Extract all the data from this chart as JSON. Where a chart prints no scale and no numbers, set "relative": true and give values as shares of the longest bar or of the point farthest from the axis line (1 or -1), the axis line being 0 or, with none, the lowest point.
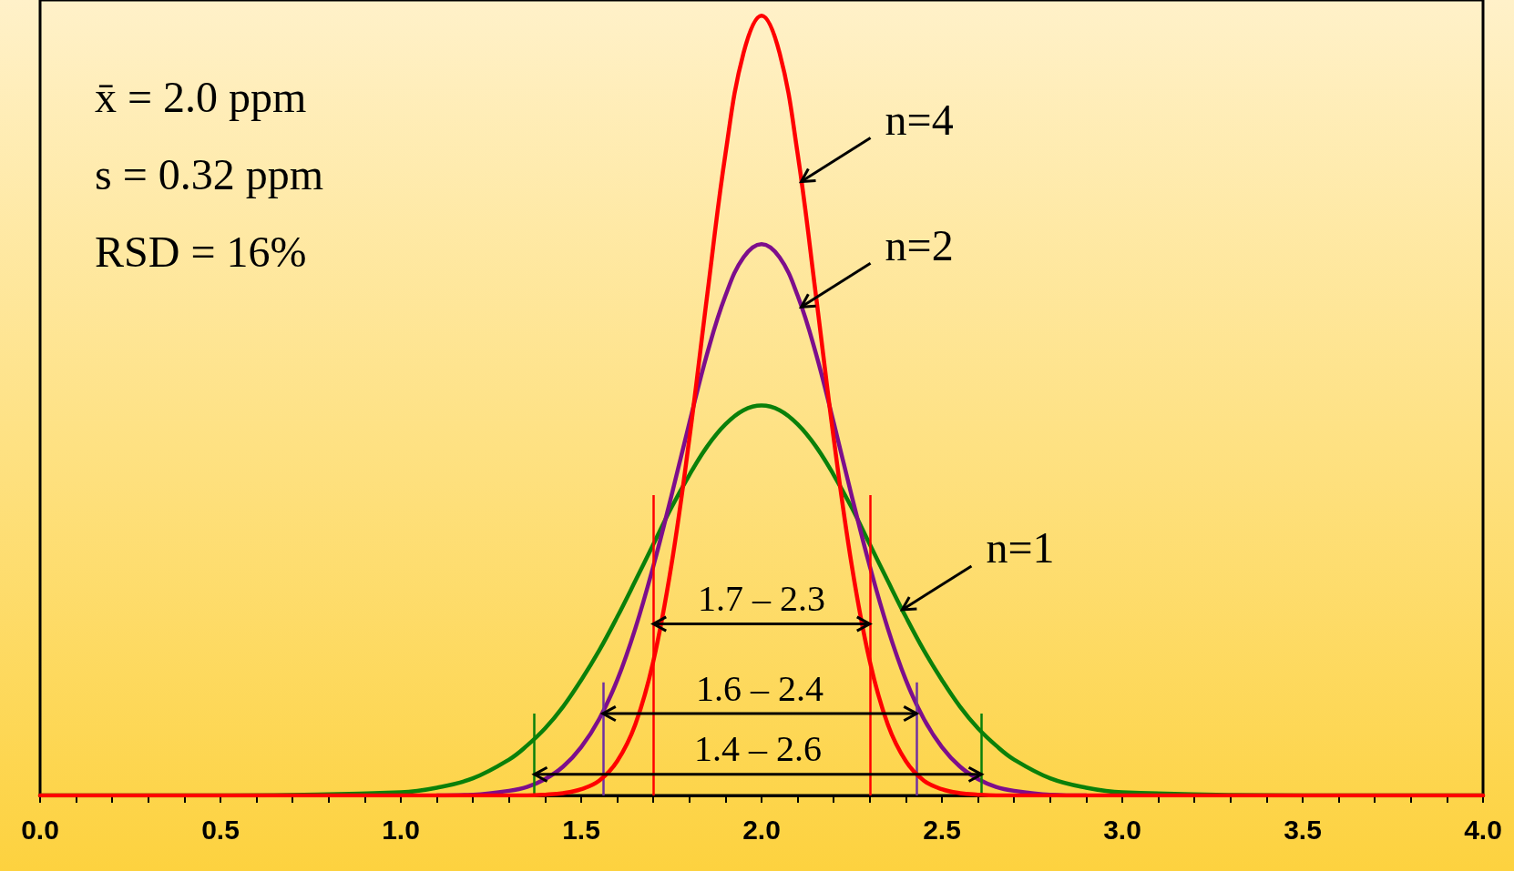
{
  "chart_data": {
    "type": "line",
    "relative": true,
    "x": [
      0,
      0.5,
      1.0,
      1.1,
      1.2,
      1.3,
      1.35,
      1.4,
      1.45,
      1.5,
      1.55,
      1.6,
      1.65,
      1.7,
      1.75,
      1.8,
      1.85,
      1.9,
      1.95,
      2.0,
      2.05,
      2.1,
      2.15,
      2.2,
      2.25,
      2.3,
      2.35,
      2.4,
      2.45,
      2.5,
      2.55,
      2.6,
      2.65,
      2.7,
      2.8,
      2.9,
      3.0,
      3.5,
      4.0
    ],
    "series": [
      {
        "color": "#0a800a",
        "values": [
          0,
          0,
          0.004,
          0.01,
          0.022,
          0.046,
          0.064,
          0.086,
          0.114,
          0.148,
          0.186,
          0.229,
          0.275,
          0.322,
          0.369,
          0.411,
          0.448,
          0.476,
          0.494,
          0.5,
          0.494,
          0.476,
          0.448,
          0.411,
          0.369,
          0.322,
          0.275,
          0.229,
          0.186,
          0.148,
          0.114,
          0.086,
          0.064,
          0.046,
          0.022,
          0.01,
          0.004,
          0,
          0
        ]
      },
      {
        "color": "#7d0e8c",
        "values": [
          null,
          null,
          null,
          0,
          0.001,
          0.006,
          0.011,
          0.021,
          0.037,
          0.062,
          0.098,
          0.148,
          0.214,
          0.294,
          0.384,
          0.478,
          0.568,
          0.641,
          0.69,
          0.707,
          0.69,
          0.641,
          0.568,
          0.478,
          0.384,
          0.294,
          0.214,
          0.148,
          0.098,
          0.062,
          0.037,
          0.021,
          0.011,
          0.006,
          0.001,
          0,
          null,
          null,
          null
        ]
      },
      {
        "color": "#ff0000",
        "values": [
          0,
          0,
          0,
          0,
          0,
          0,
          0,
          0.001,
          0.003,
          0.008,
          0.019,
          0.044,
          0.091,
          0.172,
          0.295,
          0.458,
          0.644,
          0.823,
          0.952,
          1,
          0.952,
          0.823,
          0.644,
          0.458,
          0.295,
          0.172,
          0.091,
          0.044,
          0.019,
          0.008,
          0.003,
          0.001,
          0,
          0,
          0,
          0,
          0,
          0,
          0
        ]
      }
    ],
    "xlim": [
      0,
      4
    ],
    "xticks": [
      {
        "value": 0,
        "label": "0.0"
      },
      {
        "value": 0.1,
        "label": null
      },
      {
        "value": 0.2,
        "label": null
      },
      {
        "value": 0.3,
        "label": null
      },
      {
        "value": 0.4,
        "label": null
      },
      0.5,
      {
        "value": 0.6,
        "label": null
      },
      {
        "value": 0.7,
        "label": null
      },
      {
        "value": 0.8,
        "label": null
      },
      {
        "value": 0.9,
        "label": null
      },
      {
        "value": 1,
        "label": "1.0"
      },
      {
        "value": 1.1,
        "label": null
      },
      {
        "value": 1.2,
        "label": null
      },
      {
        "value": 1.3,
        "label": null
      },
      {
        "value": 1.4,
        "label": null
      },
      1.5,
      {
        "value": 1.6,
        "label": null
      },
      {
        "value": 1.7,
        "label": null
      },
      {
        "value": 1.8,
        "label": null
      },
      {
        "value": 1.9,
        "label": null
      },
      {
        "value": 2,
        "label": "2.0"
      },
      {
        "value": 2.1,
        "label": null
      },
      {
        "value": 2.2,
        "label": null
      },
      {
        "value": 2.3,
        "label": null
      },
      {
        "value": 2.4,
        "label": null
      },
      2.5,
      {
        "value": 2.6,
        "label": null
      },
      {
        "value": 2.7,
        "label": null
      },
      {
        "value": 2.8,
        "label": null
      },
      {
        "value": 2.9,
        "label": null
      },
      {
        "value": 3,
        "label": "3.0"
      },
      {
        "value": 3.1,
        "label": null
      },
      {
        "value": 3.2,
        "label": null
      },
      {
        "value": 3.3,
        "label": null
      },
      {
        "value": 3.4,
        "label": null
      },
      3.5,
      {
        "value": 3.6,
        "label": null
      },
      {
        "value": 3.7,
        "label": null
      },
      {
        "value": 3.8,
        "label": null
      },
      {
        "value": 3.9,
        "label": null
      },
      {
        "value": 4,
        "label": "4.0"
      }
    ],
    "ref_lines": [
      {
        "axis": "x",
        "value": 1.7,
        "color": "#ff0000"
      },
      {
        "axis": "x",
        "value": 2.3,
        "color": "#ff0000"
      },
      {
        "axis": "x",
        "value": 1.56,
        "color": "#7030a0"
      },
      {
        "axis": "x",
        "value": 2.43,
        "color": "#7030a0"
      },
      {
        "axis": "x",
        "value": 1.37,
        "color": "#0a800a"
      },
      {
        "axis": "x",
        "value": 2.61,
        "color": "#0a800a"
      }
    ],
    "annotations": [
      "x̄ = 2.0 ppm",
      "s = 0.32 ppm",
      "RSD = 16%",
      "1.7 – 2.3",
      "1.6 – 2.4",
      "1.4 – 2.6",
      "n=4",
      "n=2",
      "n=1"
    ]
  }
}
